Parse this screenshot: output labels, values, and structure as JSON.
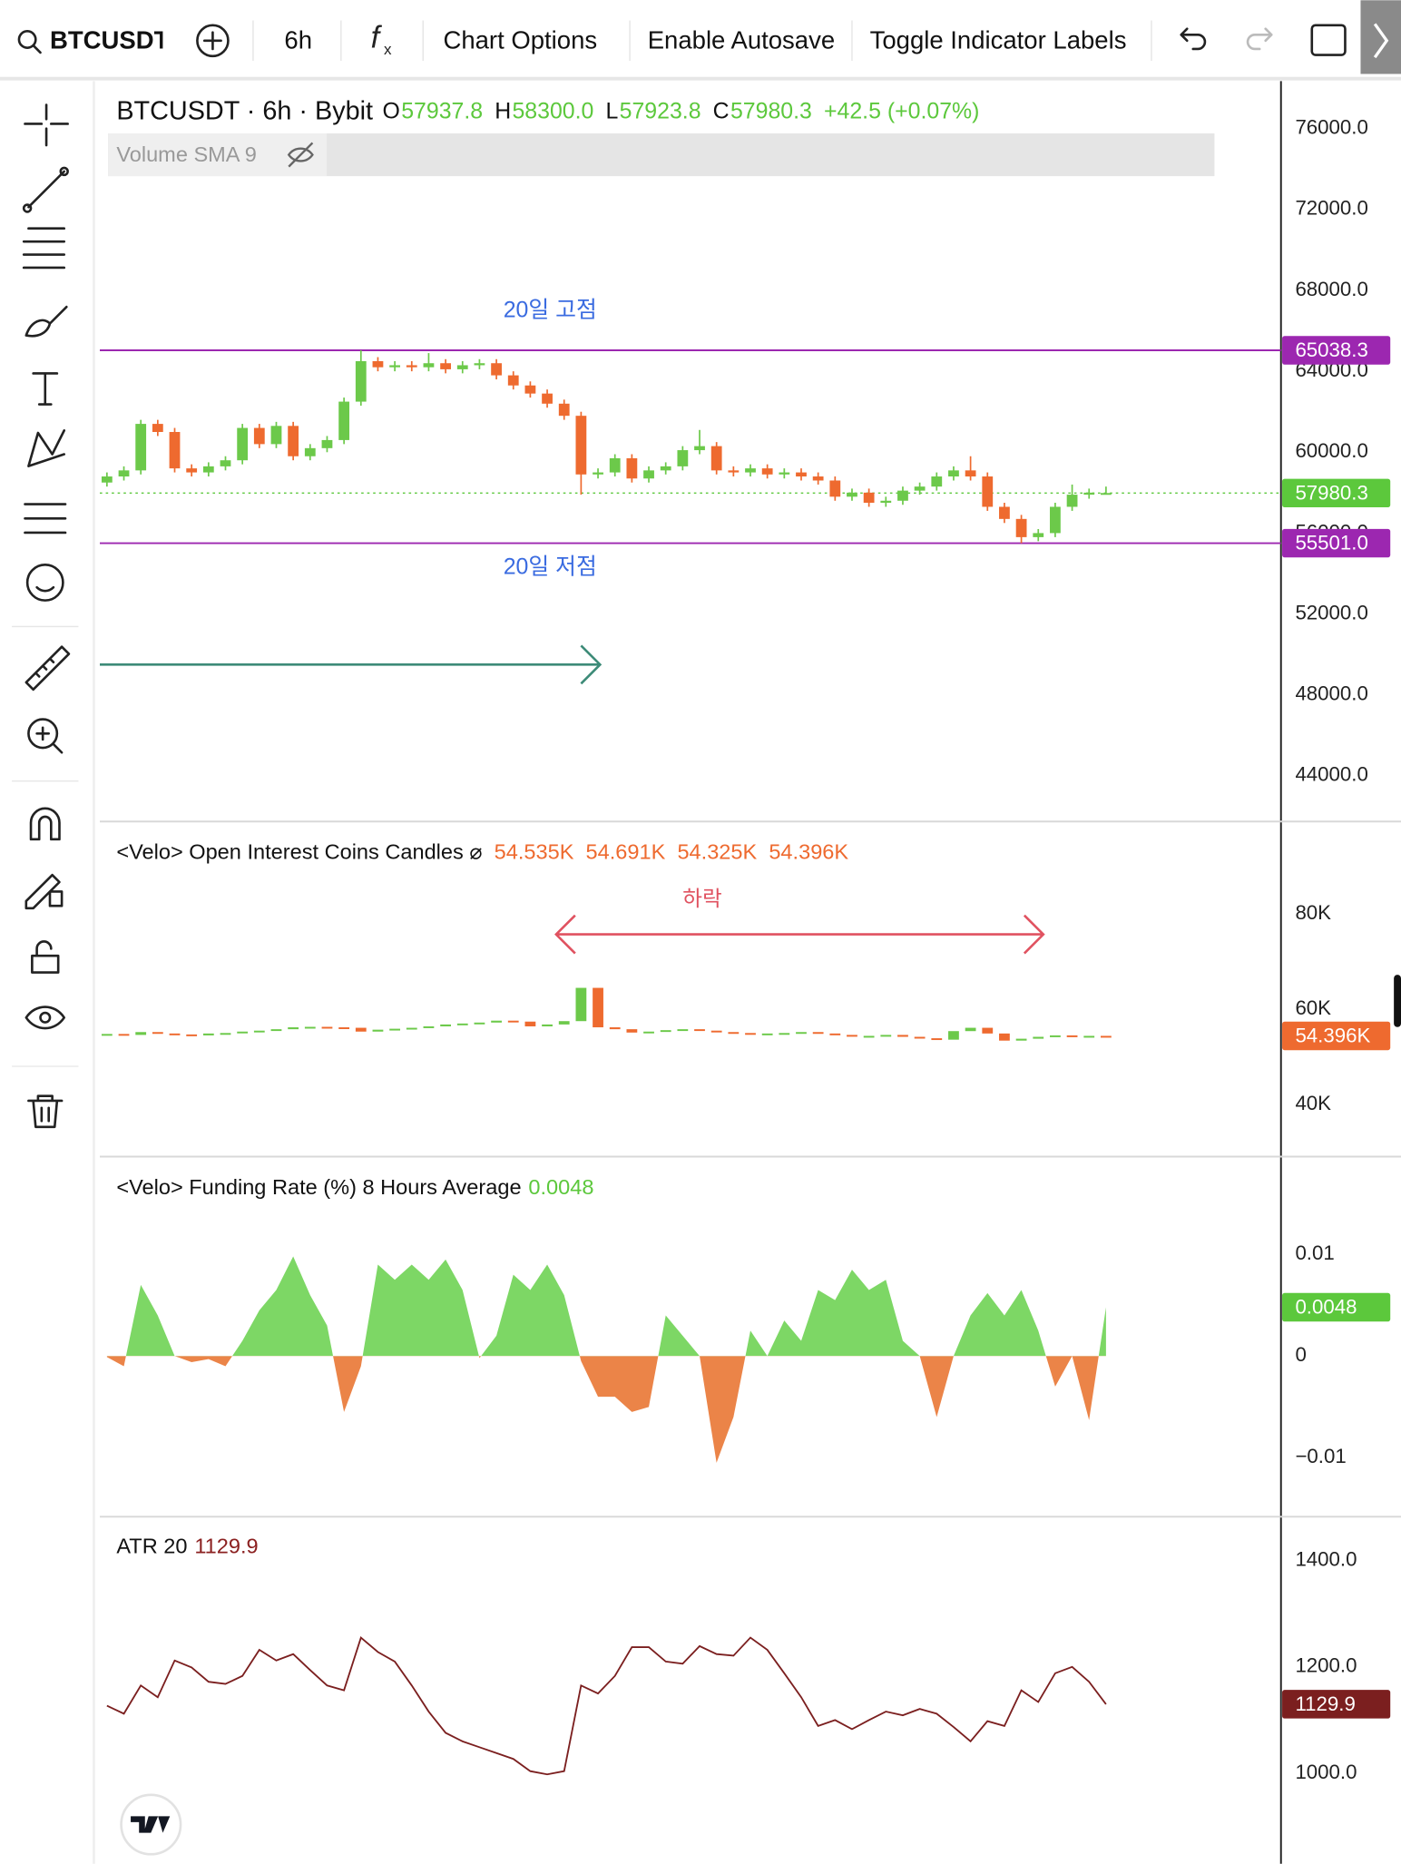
{
  "toolbar": {
    "symbol": "BTCUSDT",
    "interval": "6h",
    "buttons": [
      "Chart Options",
      "Enable Autosave",
      "Toggle Indicator Labels"
    ]
  },
  "chart_data": [
    {
      "type": "candlestick",
      "title": "BTCUSDT · 6h · Bybit",
      "legend": [
        "O",
        "57937.8",
        "H",
        "58300.0",
        "L",
        "57923.8",
        "C",
        "57980.3",
        "+42.5 (+0.07%)"
      ],
      "indicator_label": "Volume SMA 9",
      "up_color": "#6cc94a",
      "down_color": "#ee6a2f",
      "open": [
        58500,
        58800,
        59100,
        61400,
        61000,
        59200,
        59000,
        59300,
        59600,
        61200,
        60400,
        61300,
        59800,
        60200,
        60600,
        62500,
        64500,
        64200,
        64300,
        64200,
        64400,
        64100,
        64300,
        64400,
        63800,
        63300,
        62900,
        62400,
        61800,
        58900,
        59000,
        59700,
        58700,
        59100,
        59300,
        60100,
        60300,
        59100,
        59000,
        59200,
        58900,
        59000,
        58800,
        58600,
        57800,
        58000,
        57500,
        57600,
        58100,
        58300,
        58800,
        59100,
        58800,
        57300,
        56700,
        55800,
        56000,
        57300,
        57900,
        57937.8
      ],
      "high": [
        59000,
        59300,
        61600,
        61600,
        61200,
        59400,
        59500,
        59800,
        61400,
        61400,
        61500,
        61500,
        60400,
        60800,
        62700,
        65038.3,
        64700,
        64500,
        64500,
        64900,
        64600,
        64500,
        64600,
        64600,
        64000,
        63500,
        63100,
        62600,
        62000,
        59200,
        59900,
        59900,
        59300,
        59500,
        60300,
        61100,
        60500,
        59300,
        59400,
        59400,
        59200,
        59200,
        59000,
        58800,
        58200,
        58200,
        57800,
        58300,
        58500,
        59000,
        59300,
        59800,
        59000,
        57500,
        56900,
        56200,
        57500,
        58400,
        58200,
        58300
      ],
      "low": [
        58300,
        58600,
        58900,
        60800,
        59000,
        58800,
        58800,
        59100,
        59400,
        60200,
        60200,
        59600,
        59600,
        60000,
        60400,
        62300,
        64000,
        64000,
        64000,
        64000,
        63900,
        63900,
        64100,
        63600,
        63100,
        62700,
        62200,
        61600,
        57900,
        58700,
        58800,
        58500,
        58500,
        58900,
        59100,
        59900,
        58900,
        58800,
        58800,
        58700,
        58700,
        58600,
        58400,
        57600,
        57600,
        57300,
        57300,
        57400,
        57900,
        58100,
        58600,
        58600,
        57100,
        56500,
        55501,
        55600,
        55800,
        57100,
        57700,
        57923.8
      ],
      "close": [
        58800,
        59100,
        61400,
        61000,
        59200,
        59000,
        59300,
        59600,
        61200,
        60400,
        61300,
        59800,
        60200,
        60600,
        62500,
        64500,
        64200,
        64300,
        64200,
        64400,
        64100,
        64300,
        64400,
        63800,
        63300,
        62900,
        62400,
        61800,
        58900,
        59000,
        59700,
        58700,
        59100,
        59300,
        60100,
        60300,
        59100,
        59000,
        59200,
        58900,
        59000,
        58800,
        58600,
        57800,
        58000,
        57500,
        57600,
        58100,
        58300,
        58800,
        59100,
        58800,
        57300,
        56700,
        55800,
        56000,
        57300,
        57900,
        58000,
        57980.3
      ],
      "ylim": [
        41800,
        78350
      ],
      "yticks": [
        {
          "value": 44000,
          "label": "44000.0"
        },
        {
          "value": 48000,
          "label": "48000.0"
        },
        {
          "value": 52000,
          "label": "52000.0"
        },
        {
          "value": 56000,
          "label": "56000.0"
        },
        {
          "value": 60000,
          "label": "60000.0"
        },
        {
          "value": 64000,
          "label": "64000.0"
        },
        {
          "value": 68000,
          "label": "68000.0"
        },
        {
          "value": 72000,
          "label": "72000.0"
        },
        {
          "value": 76000,
          "label": "76000.0"
        }
      ],
      "hlines": [
        {
          "value": 65038.3,
          "label": "65038.3",
          "color": "#9c27b0"
        },
        {
          "value": 55501,
          "label": "55501.0",
          "color": "#9c27b0"
        }
      ],
      "annotations": [
        "20일 고점",
        "20일 저점"
      ],
      "last_color": "#5cc83c"
    },
    {
      "type": "candlestick",
      "title": "<Velo> Open Interest Coins Candles ⌀",
      "legend": [
        "54.535K",
        "54.691K",
        "54.325K",
        "54.396K"
      ],
      "up_color": "#6cc94a",
      "down_color": "#ee6a2f",
      "values": [
        54.8,
        54.6,
        55.2,
        54.9,
        54.7,
        54.5,
        54.9,
        55,
        55.3,
        55.5,
        55.8,
        56.2,
        56.3,
        56.2,
        56.1,
        55.3,
        55.7,
        55.9,
        56.1,
        56.4,
        56.8,
        57,
        57.2,
        57.6,
        57.4,
        56.4,
        56.8,
        57.5,
        64.5,
        56.2,
        55.8,
        55.1,
        55.3,
        55.6,
        55.8,
        55.5,
        55.2,
        55,
        54.8,
        54.9,
        55,
        55.2,
        54.9,
        54.6,
        54.3,
        54.4,
        54.6,
        54.2,
        53.9,
        53.6,
        55.4,
        56.1,
        54.9,
        53.4,
        53.8,
        54.2,
        54.5,
        54.3,
        54.4,
        54.396
      ],
      "last_value_label": "54.396K",
      "last_color": "#ee6a2f",
      "ylim": [
        29,
        99.5
      ],
      "yticks": [
        {
          "value": 40,
          "label": "40K"
        },
        {
          "value": 60,
          "label": "60K"
        },
        {
          "value": 80,
          "label": "80K"
        }
      ],
      "annotations": [
        "하락"
      ]
    },
    {
      "type": "area",
      "title": "<Velo> Funding Rate (%) 8 Hours Average",
      "positive_color": "#7dd765",
      "negative_color": "#eb8448",
      "last_color": "#5cc83c",
      "values": [
        -0.0001,
        -0.001,
        0.007,
        0.004,
        0,
        -0.0006,
        -0.0003,
        -0.001,
        0.0015,
        0.0045,
        0.0065,
        0.0098,
        0.006,
        0.003,
        -0.0055,
        -0.001,
        0.009,
        0.0075,
        0.009,
        0.0075,
        0.0095,
        0.0065,
        -0.0002,
        0.002,
        0.008,
        0.0065,
        0.009,
        0.006,
        -0.0005,
        -0.004,
        -0.004,
        -0.0055,
        -0.005,
        0.004,
        0.002,
        0,
        -0.0105,
        -0.006,
        0.0025,
        0,
        0.0035,
        0.0015,
        0.0065,
        0.0055,
        0.0085,
        0.0065,
        0.0075,
        0.0015,
        0,
        -0.006,
        0,
        0.004,
        0.0062,
        0.004,
        0.0065,
        0.0025,
        -0.003,
        0,
        -0.0063,
        0.0048
      ],
      "ylim": [
        -0.0158,
        0.0195
      ],
      "yticks": [
        {
          "value": -0.01,
          "label": "−0.01"
        },
        0,
        0.01
      ]
    },
    {
      "type": "line",
      "title": "ATR 20",
      "color": "#7b1f1f",
      "last_color": "#7b1f1f",
      "values": [
        1127,
        1112,
        1165,
        1143,
        1212,
        1199,
        1172,
        1168,
        1183,
        1232,
        1212,
        1224,
        1194,
        1165,
        1156,
        1255,
        1228,
        1210,
        1165,
        1116,
        1076,
        1060,
        1049,
        1038,
        1027,
        1004,
        998,
        1004,
        1165,
        1150,
        1183,
        1237,
        1237,
        1210,
        1206,
        1239,
        1224,
        1221,
        1255,
        1232,
        1188,
        1143,
        1089,
        1100,
        1083,
        1100,
        1116,
        1109,
        1121,
        1112,
        1087,
        1060,
        1098,
        1089,
        1156,
        1134,
        1188,
        1200,
        1172,
        1129.9
      ],
      "ylim": [
        830,
        1480
      ],
      "yticks": [
        {
          "value": 1000,
          "label": "1000.0"
        },
        {
          "value": 1200,
          "label": "1200.0"
        },
        {
          "value": 1400,
          "label": "1400.0"
        }
      ]
    }
  ]
}
